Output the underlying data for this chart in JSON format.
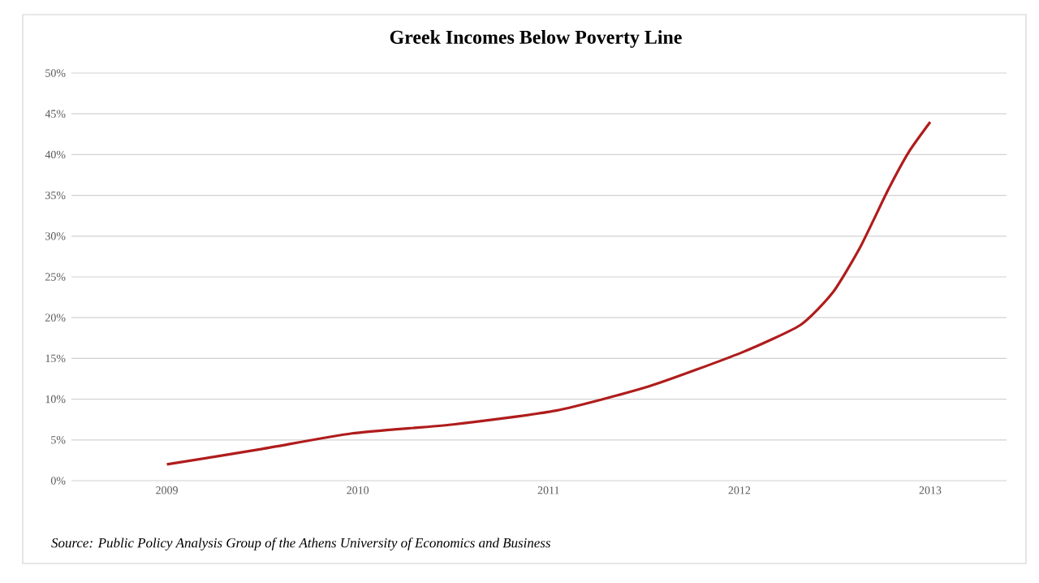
{
  "chart_data": {
    "type": "line",
    "title": "Greek Incomes Below Poverty Line",
    "x": [
      2009,
      2009.5,
      2009.97,
      2010.5,
      2011.04,
      2011.53,
      2012.01,
      2012.32,
      2012.49,
      2012.63,
      2012.78,
      2012.89,
      2013.0
    ],
    "series": [
      {
        "color": "#b01c1c",
        "values": [
          2.0,
          3.9,
          5.8,
          6.9,
          8.6,
          11.6,
          15.7,
          19.1,
          23.1,
          28.5,
          35.7,
          40.4,
          44.0
        ]
      }
    ],
    "xlim": [
      2008.5,
      2013.4
    ],
    "xticks": [
      2009,
      2010,
      2011,
      2012,
      2013
    ],
    "ylim": [
      0,
      50
    ],
    "yticks": [
      {
        "value": 0,
        "label": "0%"
      },
      {
        "value": 5,
        "label": "5%"
      },
      {
        "value": 10,
        "label": "10%"
      },
      {
        "value": 15,
        "label": "15%"
      },
      {
        "value": 20,
        "label": "20%"
      },
      {
        "value": 25,
        "label": "25%"
      },
      {
        "value": 30,
        "label": "30%"
      },
      {
        "value": 35,
        "label": "35%"
      },
      {
        "value": 40,
        "label": "40%"
      },
      {
        "value": 45,
        "label": "45%"
      },
      {
        "value": 50,
        "label": "50%"
      }
    ],
    "grid": "y",
    "marker": "none",
    "line_style": "solid",
    "annotations": [
      "Source: Public Policy Analysis Group of the Athens University of Economics and Business"
    ]
  }
}
